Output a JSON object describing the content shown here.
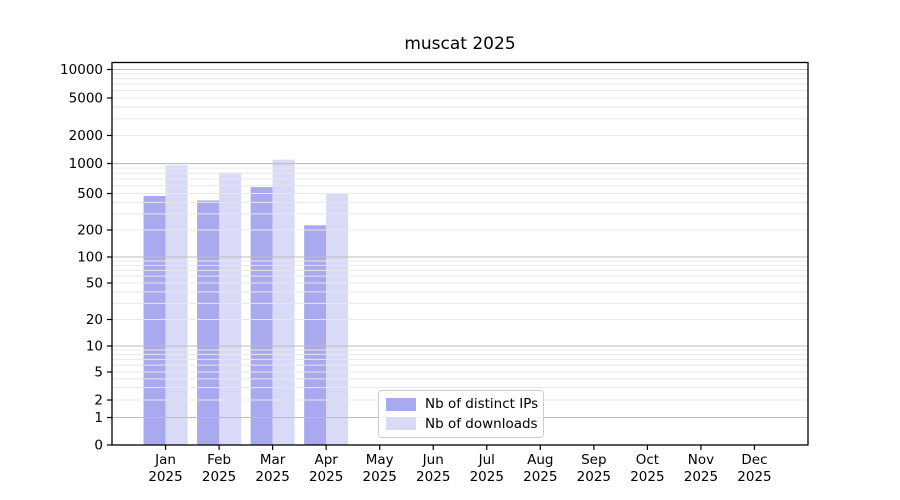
{
  "page": {
    "background": "#ffffff"
  },
  "chart_data": {
    "type": "bar",
    "title": "muscat 2025",
    "categories": [
      "Jan",
      "Feb",
      "Mar",
      "Apr",
      "May",
      "Jun",
      "Jul",
      "Aug",
      "Sep",
      "Oct",
      "Nov",
      "Dec"
    ],
    "year": "2025",
    "series": [
      {
        "name": "Nb of distinct IPs",
        "color": "#a9a9f0",
        "values": [
          470,
          420,
          580,
          225,
          0,
          0,
          0,
          0,
          0,
          0,
          0,
          0
        ]
      },
      {
        "name": "Nb of downloads",
        "color": "#d9d9f8",
        "values": [
          960,
          810,
          1100,
          505,
          0,
          0,
          0,
          0,
          0,
          0,
          0,
          0
        ]
      }
    ],
    "y_ticks": [
      0,
      1,
      2,
      5,
      10,
      20,
      50,
      100,
      200,
      500,
      1000,
      2000,
      5000,
      10000
    ],
    "y_scale": "log-with-zero",
    "ylim": [
      0,
      13000
    ],
    "grid": true,
    "legend_position": "bottom-center"
  },
  "colors": {
    "bar_distinct_ips": "#a9a9f0",
    "bar_downloads": "#d9d9f8",
    "grid_minor": "#e8e8e8",
    "grid_major": "#bdbdbd",
    "axis_frame": "#000000",
    "tick_text": "#000000"
  }
}
